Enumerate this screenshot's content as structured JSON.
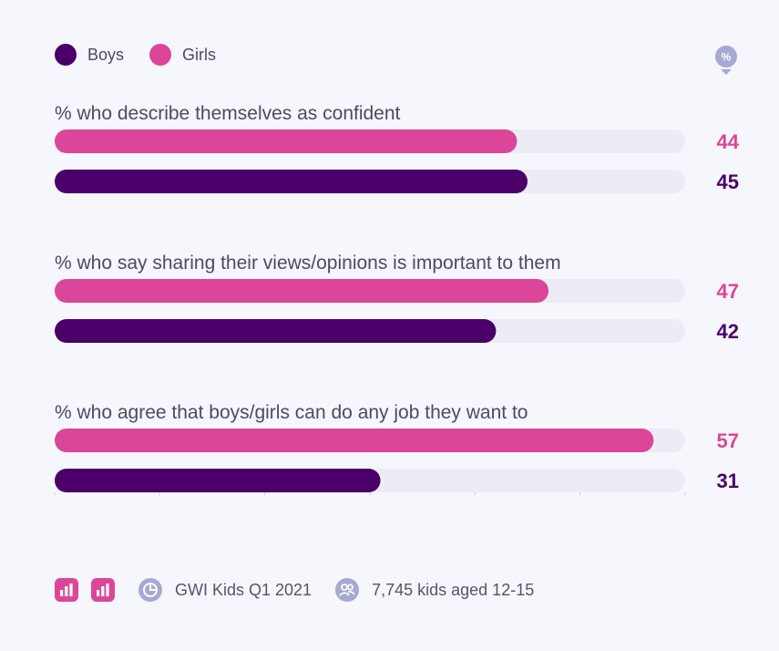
{
  "legend": {
    "boys_label": "Boys",
    "girls_label": "Girls"
  },
  "badge": {
    "icon": "percent-icon",
    "text": "%"
  },
  "footer": {
    "source_label": "GWI Kids Q1 2021",
    "sample_label": "7,745 kids aged 12-15"
  },
  "colors": {
    "boys": "#4a0068",
    "girls": "#dc4698",
    "track": "#ececf7",
    "text": "#4b4b63",
    "muted_icon": "#a6a9d1"
  },
  "chart_data": {
    "type": "bar",
    "orientation": "horizontal",
    "xlim": [
      0,
      60
    ],
    "categories": [
      "% who describe themselves as confident",
      "% who say sharing their views/opinions is important to them",
      "% who agree that boys/girls can do any job they want to"
    ],
    "series": [
      {
        "name": "Girls",
        "values": [
          44,
          47,
          57
        ]
      },
      {
        "name": "Boys",
        "values": [
          45,
          42,
          31
        ]
      }
    ]
  }
}
